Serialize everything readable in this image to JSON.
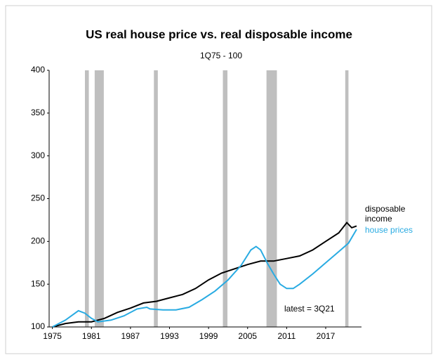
{
  "chart_data": {
    "type": "line",
    "title": "US real house price vs. real disposable income",
    "subtitle": "1Q75 - 100",
    "annotation": "latest = 3Q21",
    "xlim": [
      1974.5,
      2022.5
    ],
    "xticks": [
      1975,
      1981,
      1987,
      1993,
      1999,
      2005,
      2011,
      2017
    ],
    "ylim": [
      100,
      400
    ],
    "yticks": [
      100,
      150,
      200,
      250,
      300,
      350,
      400
    ],
    "recessions": [
      [
        1980.0,
        1980.6
      ],
      [
        1981.5,
        1982.9
      ],
      [
        1990.6,
        1991.2
      ],
      [
        2001.2,
        2001.9
      ],
      [
        2007.9,
        2009.5
      ],
      [
        2020.0,
        2020.5
      ]
    ],
    "recession_color": "#bfbfbf",
    "series": [
      {
        "name": "disposable income",
        "color": "#000000",
        "x": [
          1975,
          1977,
          1979,
          1981,
          1983,
          1985,
          1987,
          1989,
          1991,
          1993,
          1995,
          1997,
          1999,
          2001,
          2003,
          2005,
          2007,
          2009,
          2011,
          2013,
          2015,
          2017,
          2019,
          2020.25,
          2021,
          2021.75
        ],
        "values": [
          100,
          104,
          106,
          106,
          110,
          117,
          122,
          128,
          130,
          134,
          138,
          145,
          155,
          163,
          168,
          173,
          177,
          177,
          180,
          183,
          190,
          200,
          210,
          222,
          216,
          218
        ]
      },
      {
        "name": "house prices",
        "color": "#29abe2",
        "x": [
          1975,
          1977,
          1979,
          1980,
          1981,
          1982,
          1984,
          1986,
          1988,
          1989.5,
          1990,
          1992,
          1994,
          1996,
          1998,
          2000,
          2002,
          2004,
          2005.5,
          2006.3,
          2007,
          2008,
          2009,
          2010,
          2011,
          2012,
          2013,
          2015,
          2017,
          2019,
          2020.5,
          2021.75
        ],
        "values": [
          100,
          108,
          119,
          116,
          110,
          106,
          108,
          113,
          121,
          123,
          121,
          120,
          120,
          123,
          132,
          142,
          155,
          172,
          190,
          194,
          190,
          175,
          162,
          150,
          145,
          145,
          150,
          162,
          175,
          188,
          198,
          214
        ]
      }
    ]
  }
}
